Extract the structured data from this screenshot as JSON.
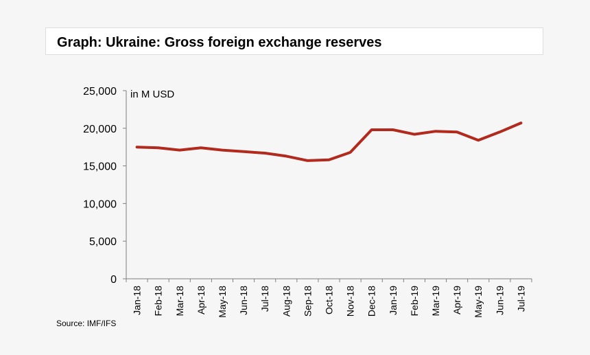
{
  "title": "Graph: Ukraine: Gross foreign exchange reserves",
  "source": "Source: IMF/IFS",
  "colors": {
    "line": "#b22a1d",
    "axis": "#7f7f7f",
    "background": "#f6f6f6"
  },
  "chart_data": {
    "type": "line",
    "title": "Graph: Ukraine: Gross foreign exchange reserves",
    "ylabel": "in M USD",
    "xlabel": "",
    "ylim": [
      0,
      25000
    ],
    "yticks": [
      0,
      5000,
      10000,
      15000,
      20000,
      25000
    ],
    "ytick_labels": [
      "0",
      "5,000",
      "10,000",
      "15,000",
      "20,000",
      "25,000"
    ],
    "grid": false,
    "categories": [
      "Jan-18",
      "Feb-18",
      "Mar-18",
      "Apr-18",
      "May-18",
      "Jun-18",
      "Jul-18",
      "Aug-18",
      "Sep-18",
      "Oct-18",
      "Nov-18",
      "Dec-18",
      "Jan-19",
      "Feb-19",
      "Mar-19",
      "Apr-19",
      "May-19",
      "Jun-19",
      "Jul-19"
    ],
    "series": [
      {
        "name": "Gross foreign exchange reserves",
        "values": [
          17500,
          17400,
          17100,
          17400,
          17100,
          16900,
          16700,
          16300,
          15700,
          15800,
          16800,
          19800,
          19800,
          19200,
          19600,
          19500,
          18400,
          19500,
          20700
        ]
      }
    ]
  }
}
